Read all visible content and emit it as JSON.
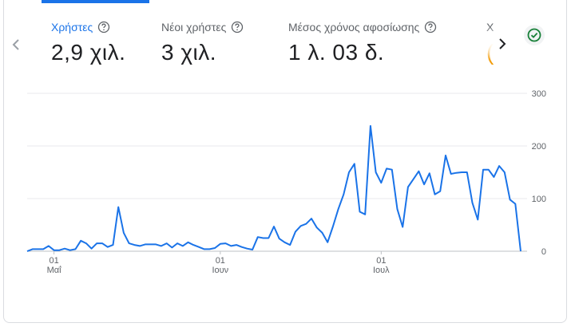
{
  "metrics": [
    {
      "label": "Χρήστες",
      "value": "2,9 χιλ.",
      "active": true
    },
    {
      "label": "Νέοι χρήστες",
      "value": "3 χιλ.",
      "active": false
    },
    {
      "label": "Μέσος χρόνος αφοσίωσης",
      "value": "1 λ. 03 δ.",
      "active": false
    }
  ],
  "next_metric_peek": {
    "label": "Χ",
    "value": "("
  },
  "icons": {
    "prev": "chevron-left-icon",
    "next": "chevron-right-icon",
    "help": "help-circle-icon",
    "status": "check-circle-icon"
  },
  "colors": {
    "accent": "#1a73e8",
    "line": "#1a73e8",
    "status_check": "#188038"
  },
  "chart_data": {
    "type": "line",
    "title": "",
    "xlabel": "",
    "ylabel": "",
    "ylim": [
      0,
      300
    ],
    "y_ticks": [
      "0",
      "100",
      "200",
      "300"
    ],
    "x_ticks": [
      {
        "index": 5,
        "day": "01",
        "month": "Μαΐ"
      },
      {
        "index": 36,
        "day": "01",
        "month": "Ιουν"
      },
      {
        "index": 66,
        "day": "01",
        "month": "Ιουλ"
      }
    ],
    "grid": true,
    "series": [
      {
        "values": [
          0,
          4,
          4,
          4,
          10,
          2,
          2,
          5,
          2,
          4,
          20,
          15,
          5,
          15,
          15,
          8,
          12,
          84,
          35,
          15,
          12,
          10,
          13,
          13,
          13,
          10,
          15,
          7,
          15,
          10,
          17,
          12,
          8,
          4,
          4,
          6,
          14,
          15,
          10,
          12,
          8,
          5,
          3,
          27,
          25,
          25,
          47,
          24,
          17,
          12,
          37,
          48,
          52,
          62,
          45,
          35,
          17,
          47,
          80,
          108,
          150,
          166,
          75,
          70,
          238,
          150,
          130,
          157,
          155,
          80,
          46,
          122,
          137,
          152,
          127,
          148,
          108,
          114,
          182,
          147,
          149,
          150,
          150,
          92,
          60,
          155,
          155,
          141,
          162,
          150,
          98,
          90,
          0
        ]
      }
    ]
  }
}
